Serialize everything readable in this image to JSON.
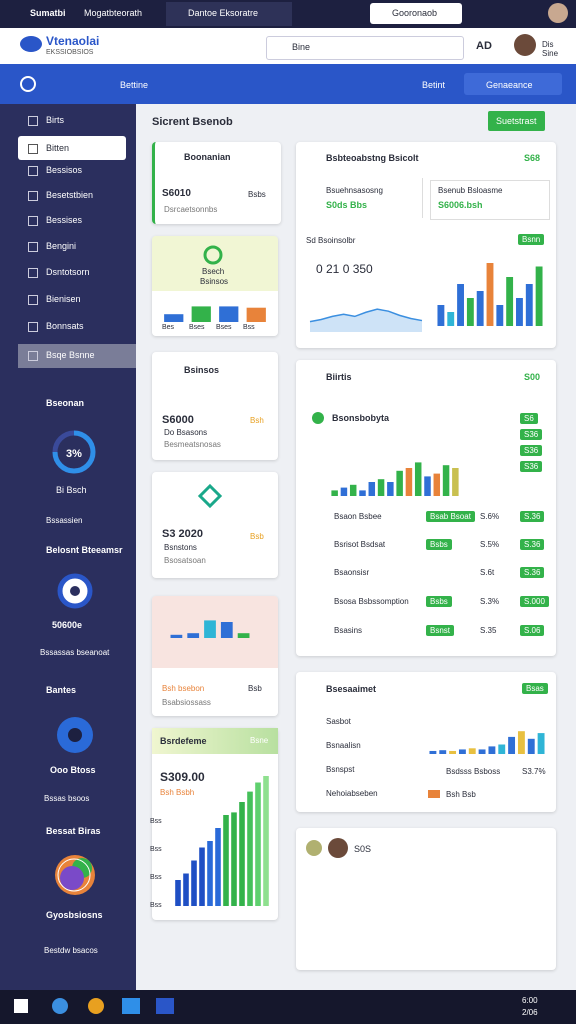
{
  "browser": {
    "tabs": [
      "Sumatbi",
      "Mogatbteorath",
      "Dantoe Eksoratre"
    ],
    "right_tab": "Gooronaob"
  },
  "header": {
    "brand": "Vtenaolai",
    "brand_sub": "EKSSIOBSIOS",
    "search": "Bine",
    "user": "Dis Sine",
    "user_code": "AD"
  },
  "nav": {
    "items": [
      "Bettine",
      "Betint",
      "Genaeance"
    ]
  },
  "sidebar": {
    "items": [
      "Birts",
      "Bitten",
      "Bessisos",
      "Besetstbien",
      "Bessises",
      "Bengini",
      "Dsntotsorn",
      "Bienisen",
      "Bonnsats",
      "Bsqe Bsnne"
    ],
    "widgets": [
      {
        "title": "Bseonan",
        "value": "3%",
        "label": "Bi Bsch",
        "footer": "Bssassien"
      },
      {
        "title": "Belosnt Bteeamsr",
        "value": "50600e",
        "footer": "Bssassas bseanoat"
      },
      {
        "title": "Bantes",
        "value": "Ooo Btoss",
        "footer": "Bssas bsoos"
      },
      {
        "title": "Bessat Biras",
        "value": "Gyosbsiosns",
        "footer": "Bestdw bsacos"
      }
    ]
  },
  "page": {
    "title": "Sicrent Bsenob",
    "button": "Suetstrast"
  },
  "left1": {
    "title": "Boonanian",
    "value": "S6010",
    "side": "Bsbs",
    "caption": "Dsrcaetsonnbs"
  },
  "left2": {
    "title": "Bsech",
    "subtitle": "Bsinsos",
    "chart": {
      "values": [
        30,
        60,
        60,
        55
      ],
      "colors": [
        "#2f6fd6",
        "#33b24a",
        "#2f6fd6",
        "#e8833a"
      ],
      "ylim": [
        0,
        100
      ]
    },
    "labels": [
      "Bes",
      "Bses",
      "Bses",
      "Bss"
    ]
  },
  "left3": {
    "title": "Bsinsos",
    "value": "S6000",
    "side": "Bsh",
    "caption": "Do Bsasons",
    "footer": "Besmeatsnosas"
  },
  "left4": {
    "value": "S3 2020",
    "side": "Bsb",
    "caption": "Bsnstons",
    "footer": "Bsosatsoan"
  },
  "left5": {
    "chart": {
      "values": [
        10,
        15,
        55,
        50,
        15
      ],
      "colors": [
        "#2f6fd6",
        "#2f6fd6",
        "#2fb5d6",
        "#2f6fd6",
        "#33b24a"
      ],
      "ylim": [
        0,
        100
      ]
    },
    "value": "Bsh bsebon",
    "side": "Bsb",
    "caption": "Bsabsiossass"
  },
  "left6": {
    "title": "Bsrdefeme",
    "badge": "Bsne",
    "value": "S309.00",
    "caption": "Bsh Bsbh",
    "axis": [
      "Bss",
      "Bss",
      "Bss",
      "Bss"
    ],
    "chart": {
      "values": [
        20,
        25,
        35,
        45,
        50,
        60,
        70,
        72,
        80,
        88,
        95,
        100
      ],
      "colors": [
        "#1f4fc4",
        "#1f4fc4",
        "#1f4fc4",
        "#1f4fc4",
        "#2a6ad8",
        "#2a6ad8",
        "#33b24a",
        "#33b24a",
        "#33b24a",
        "#45c05a",
        "#5fd06e",
        "#8fe08f"
      ],
      "ylim": [
        0,
        100
      ]
    }
  },
  "right1": {
    "title": "Bsbteoabstng Bsicolt",
    "value": "S68",
    "sub1_title": "Bsuehnsasosng",
    "sub1_value": "S0ds Bbs",
    "sub2_title": "Bsenub Bsloasme",
    "sub2_value": "S6006.bsh",
    "chart_title": "Sd Bsoinsolbr",
    "chart_badge": "Bsnn",
    "figure": "0 21 0 350",
    "area": {
      "values": [
        20,
        24,
        30,
        34,
        30,
        38,
        44,
        40,
        32,
        26,
        22
      ],
      "ylim": [
        0,
        100
      ],
      "color": "#3b8fe0"
    },
    "bars": {
      "values": [
        30,
        20,
        60,
        40,
        50,
        90,
        30,
        70,
        40,
        60,
        85
      ],
      "colors": [
        "#2f6fd6",
        "#2fb5d6",
        "#2f6fd6",
        "#33b24a",
        "#2f6fd6",
        "#e8833a",
        "#2f6fd6",
        "#33b24a",
        "#2f6fd6",
        "#2f6fd6",
        "#33b24a"
      ],
      "ylim": [
        0,
        100
      ]
    }
  },
  "right2": {
    "title": "Biirtis",
    "value": "S00",
    "chart_title": "Bsonsbobyta",
    "side_badges": [
      "S6",
      "S36",
      "S36",
      "S36"
    ],
    "chart": {
      "values": [
        10,
        15,
        20,
        10,
        25,
        30,
        25,
        45,
        50,
        60,
        35,
        40,
        55,
        50
      ],
      "colors": [
        "#33b24a",
        "#2f6fd6",
        "#33b24a",
        "#2f6fd6",
        "#2f6fd6",
        "#33b24a",
        "#2f6fd6",
        "#33b24a",
        "#e8833a",
        "#33b24a",
        "#2f6fd6",
        "#e8833a",
        "#33b24a",
        "#c9c050"
      ],
      "ylim": [
        0,
        100
      ]
    },
    "rows": [
      {
        "label": "Bsaon Bsbee",
        "tag": "Bsab Bsoat",
        "value": "S.6%",
        "badge": "S.36"
      },
      {
        "label": "Bsrisot Bsdsat",
        "tag": "Bsbs",
        "value": "S.5%",
        "badge": "S.36"
      },
      {
        "label": "Bsaonsisr",
        "value": "S.6t",
        "badge": "S.36"
      },
      {
        "label": "Bsosa Bsbssomption",
        "tag": "Bsbs",
        "value": "S.3%",
        "badge": "S.000"
      },
      {
        "label": "Bsasins",
        "tag": "Bsnst",
        "value": "S.35",
        "badge": "S.06"
      }
    ]
  },
  "right3": {
    "title": "Bsesaaimet",
    "badge": "Bsas",
    "rows": [
      "Sasbot",
      "Bsnaalisn",
      "Bsnspst",
      "Nehoiabseben"
    ],
    "row_info": [
      "Bsdsss Bsboss",
      "S3.7%",
      "Bsh Bsb"
    ],
    "chart": {
      "values": [
        8,
        10,
        8,
        12,
        15,
        12,
        20,
        25,
        45,
        60,
        40,
        55
      ],
      "colors": [
        "#2f6fd6",
        "#2f6fd6",
        "#e8c040",
        "#2f6fd6",
        "#e8c040",
        "#2f6fd6",
        "#2f6fd6",
        "#2fb5d6",
        "#2f6fd6",
        "#e8c040",
        "#2f6fd6",
        "#2fb5d6"
      ],
      "ylim": [
        0,
        100
      ]
    }
  },
  "right4": {
    "title": "S0S"
  },
  "taskbar": {
    "time": "6:00",
    "date": "2/06"
  }
}
